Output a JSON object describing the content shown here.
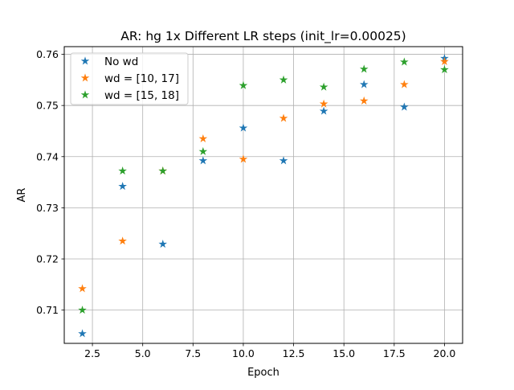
{
  "chart_data": {
    "type": "scatter",
    "title": "AR: hg 1x Different LR steps (init_lr=0.00025)",
    "xlabel": "Epoch",
    "ylabel": "AR",
    "xlim": [
      1.1,
      20.9
    ],
    "ylim": [
      0.7035,
      0.7615
    ],
    "xticks": [
      2.5,
      5.0,
      7.5,
      10.0,
      12.5,
      15.0,
      17.5,
      20.0
    ],
    "xtick_labels": [
      "2.5",
      "5.0",
      "7.5",
      "10.0",
      "12.5",
      "15.0",
      "17.5",
      "20.0"
    ],
    "yticks": [
      0.71,
      0.72,
      0.73,
      0.74,
      0.75,
      0.76
    ],
    "ytick_labels": [
      "0.71",
      "0.72",
      "0.73",
      "0.74",
      "0.75",
      "0.76"
    ],
    "grid": true,
    "legend_position": "top-left",
    "marker": "star",
    "series": [
      {
        "name": "No wd",
        "color": "#1f77b4",
        "x": [
          2,
          4,
          6,
          8,
          10,
          12,
          14,
          16,
          18,
          20
        ],
        "y": [
          0.7054,
          0.7342,
          0.7229,
          0.7392,
          0.7456,
          0.7392,
          0.7489,
          0.7541,
          0.7497,
          0.7592
        ]
      },
      {
        "name": "wd = [10, 17]",
        "color": "#ff7f0e",
        "x": [
          2,
          4,
          6,
          8,
          10,
          12,
          14,
          16,
          18,
          20
        ],
        "y": [
          0.7142,
          0.7235,
          0.7372,
          0.7435,
          0.7395,
          0.7475,
          0.7503,
          0.7509,
          0.7541,
          0.7586
        ]
      },
      {
        "name": "wd = [15, 18]",
        "color": "#2ca02c",
        "x": [
          2,
          4,
          6,
          8,
          10,
          12,
          14,
          16,
          18,
          20
        ],
        "y": [
          0.71,
          0.7372,
          0.7372,
          0.741,
          0.7539,
          0.755,
          0.7536,
          0.7571,
          0.7585,
          0.757
        ]
      }
    ]
  }
}
